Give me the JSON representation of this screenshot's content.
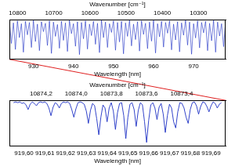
{
  "chart_data": [
    {
      "type": "line",
      "color": "#1c2fc4",
      "xlabel": "Wavelength [nm]",
      "x2label": "Wavenumber [cm⁻¹]",
      "xlim": [
        924,
        978
      ],
      "xticks": [
        930,
        940,
        950,
        960,
        970
      ],
      "x2lim": [
        10822.5,
        10224.9
      ],
      "x2ticks": [
        10800,
        10700,
        10600,
        10500,
        10400,
        10300
      ],
      "ylim": [
        0,
        1
      ],
      "tick_labels": "x",
      "grid": false,
      "x": [
        924,
        924.5,
        925,
        925.5,
        926,
        926.5,
        927,
        927.5,
        928,
        928.5,
        929,
        929.5,
        930,
        930.5,
        931,
        931.5,
        932,
        932.5,
        933,
        933.5,
        934,
        934.5,
        935,
        935.5,
        936,
        936.5,
        937,
        937.5,
        938,
        938.5,
        939,
        939.5,
        940,
        940.5,
        941,
        941.5,
        942,
        942.5,
        943,
        943.5,
        944,
        944.5,
        945,
        945.5,
        946,
        946.5,
        947,
        947.5,
        948,
        948.5,
        949,
        949.5,
        950,
        950.5,
        951,
        951.5,
        952,
        952.5,
        953,
        953.5,
        954,
        954.5,
        955,
        955.5,
        956,
        956.5,
        957,
        957.5,
        958,
        958.5,
        959,
        959.5,
        960,
        960.5,
        961,
        961.5,
        962,
        962.5,
        963,
        963.5,
        964,
        964.5,
        965,
        965.5,
        966,
        966.5,
        967,
        967.5,
        968,
        968.5,
        969,
        969.5,
        970,
        970.5,
        971,
        971.5,
        972,
        972.5,
        973,
        973.5,
        974,
        974.5,
        975,
        975.5,
        976,
        976.5,
        977,
        977.5,
        978
      ],
      "values": [
        0.95,
        0.4,
        0.92,
        0.25,
        0.97,
        0.55,
        0.9,
        0.18,
        0.96,
        0.62,
        0.93,
        0.3,
        0.98,
        0.45,
        0.89,
        0.22,
        0.95,
        0.7,
        0.91,
        0.35,
        0.97,
        0.15,
        0.94,
        0.58,
        0.88,
        0.28,
        0.96,
        0.48,
        0.92,
        0.2,
        0.98,
        0.65,
        0.9,
        0.33,
        0.95,
        0.12,
        0.93,
        0.52,
        0.97,
        0.26,
        0.89,
        0.6,
        0.96,
        0.38,
        0.91,
        0.17,
        0.98,
        0.55,
        0.94,
        0.3,
        0.9,
        0.68,
        0.97,
        0.23,
        0.93,
        0.44,
        0.96,
        0.14,
        0.92,
        0.58,
        0.98,
        0.34,
        0.89,
        0.5,
        0.95,
        0.21,
        0.97,
        0.63,
        0.91,
        0.27,
        0.94,
        0.46,
        0.98,
        0.16,
        0.9,
        0.57,
        0.96,
        0.31,
        0.93,
        0.66,
        0.97,
        0.24,
        0.89,
        0.49,
        0.95,
        0.19,
        0.92,
        0.61,
        0.98,
        0.36,
        0.94,
        0.13,
        0.9,
        0.54,
        0.97,
        0.29,
        0.93,
        0.67,
        0.96,
        0.22,
        0.91,
        0.47,
        0.98,
        0.18,
        0.94,
        0.59,
        0.9,
        0.32,
        0.96
      ]
    },
    {
      "type": "line",
      "color": "#1c2fc4",
      "xlabel": "Wavelength [nm]",
      "x2label": "Wavenumber [cm⁻¹]",
      "xlim": [
        919.593,
        919.697
      ],
      "xticks": [
        {
          "value": 919.6,
          "label": "919,60"
        },
        {
          "value": 919.61,
          "label": "919,61"
        },
        {
          "value": 919.62,
          "label": "919,62"
        },
        {
          "value": 919.63,
          "label": "919,63"
        },
        {
          "value": 919.64,
          "label": "919,64"
        },
        {
          "value": 919.65,
          "label": "919,65"
        },
        {
          "value": 919.66,
          "label": "919,66"
        },
        {
          "value": 919.67,
          "label": "919,67"
        },
        {
          "value": 919.68,
          "label": "919,68"
        },
        {
          "value": 919.69,
          "label": "919,69"
        }
      ],
      "x2lim": [
        10874.38,
        10873.15
      ],
      "x2ticks": [
        {
          "value": 10874.2,
          "label": "10874,2"
        },
        {
          "value": 10874.0,
          "label": "10874,0"
        },
        {
          "value": 10873.8,
          "label": "10873,8"
        },
        {
          "value": 10873.6,
          "label": "10873,6"
        },
        {
          "value": 10873.4,
          "label": "10873,4"
        }
      ],
      "ylim": [
        0.4,
        1.0
      ],
      "tick_labels": "x",
      "grid": false,
      "x": [
        919.595,
        919.596,
        919.597,
        919.598,
        919.599,
        919.6,
        919.601,
        919.602,
        919.603,
        919.604,
        919.605,
        919.606,
        919.607,
        919.608,
        919.609,
        919.61,
        919.611,
        919.612,
        919.613,
        919.614,
        919.615,
        919.616,
        919.617,
        919.618,
        919.619,
        919.62,
        919.621,
        919.622,
        919.623,
        919.624,
        919.625,
        919.626,
        919.627,
        919.628,
        919.629,
        919.63,
        919.631,
        919.632,
        919.633,
        919.634,
        919.635,
        919.636,
        919.637,
        919.638,
        919.639,
        919.64,
        919.641,
        919.642,
        919.643,
        919.644,
        919.645,
        919.646,
        919.647,
        919.648,
        919.649,
        919.65,
        919.651,
        919.652,
        919.653,
        919.654,
        919.655,
        919.656,
        919.657,
        919.658,
        919.659,
        919.66,
        919.661,
        919.662,
        919.663,
        919.664,
        919.665,
        919.666,
        919.667,
        919.668,
        919.669,
        919.67,
        919.671,
        919.672,
        919.673,
        919.674,
        919.675,
        919.676,
        919.677,
        919.678,
        919.679,
        919.68,
        919.681,
        919.682,
        919.683,
        919.684,
        919.685,
        919.686,
        919.687,
        919.688,
        919.689,
        919.69,
        919.691,
        919.692,
        919.693,
        919.694,
        919.695
      ],
      "values": [
        0.97,
        0.98,
        0.97,
        0.98,
        0.96,
        0.97,
        0.94,
        0.88,
        0.95,
        0.98,
        0.96,
        0.93,
        0.97,
        0.98,
        0.97,
        0.98,
        0.96,
        0.9,
        0.8,
        0.91,
        0.97,
        0.95,
        0.9,
        0.96,
        0.98,
        0.97,
        0.98,
        0.96,
        0.88,
        0.78,
        0.89,
        0.97,
        0.98,
        0.97,
        0.95,
        0.86,
        0.7,
        0.87,
        0.96,
        0.93,
        0.76,
        0.55,
        0.78,
        0.94,
        0.9,
        0.72,
        0.9,
        0.97,
        0.86,
        0.62,
        0.84,
        0.96,
        0.97,
        0.8,
        0.5,
        0.78,
        0.95,
        0.97,
        0.88,
        0.66,
        0.87,
        0.97,
        0.94,
        0.72,
        0.45,
        0.74,
        0.94,
        0.97,
        0.9,
        0.75,
        0.91,
        0.96,
        0.82,
        0.58,
        0.8,
        0.95,
        0.9,
        0.72,
        0.64,
        0.85,
        0.97,
        0.96,
        0.9,
        0.78,
        0.7,
        0.88,
        0.97,
        0.98,
        0.93,
        0.82,
        0.92,
        0.98,
        0.97,
        0.92,
        0.85,
        0.93,
        0.98,
        0.96,
        0.9,
        0.95,
        0.97
      ]
    }
  ]
}
